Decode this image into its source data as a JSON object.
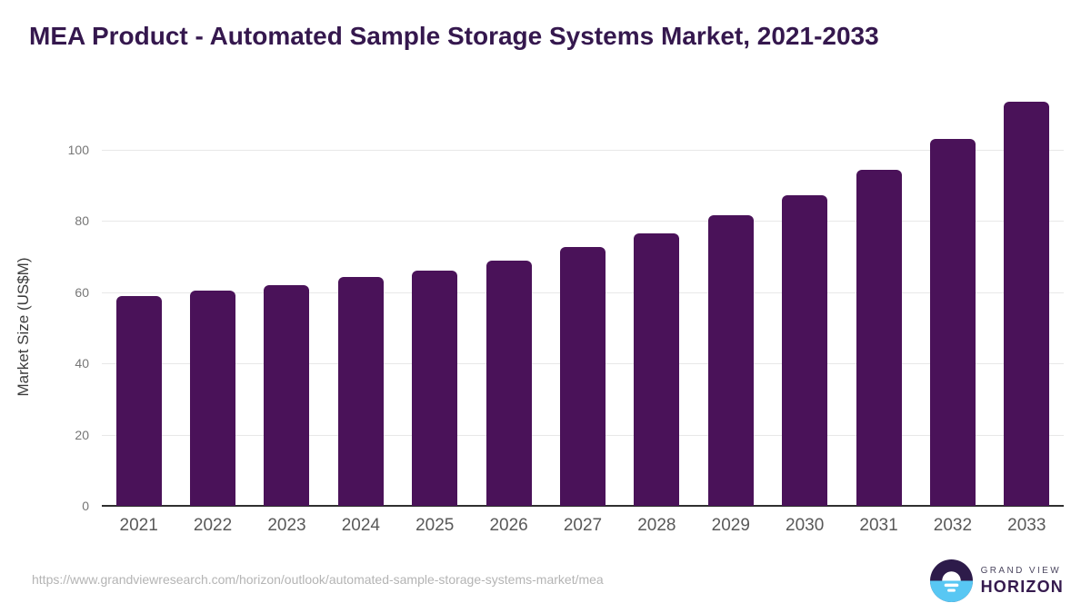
{
  "header": {
    "title": "MEA Product - Automated Sample Storage Systems Market, 2021-2033"
  },
  "chart_data": {
    "type": "bar",
    "title": "MEA Product - Automated Sample Storage Systems Market, 2021-2033",
    "categories": [
      "2021",
      "2022",
      "2023",
      "2024",
      "2025",
      "2026",
      "2027",
      "2028",
      "2029",
      "2030",
      "2031",
      "2032",
      "2033"
    ],
    "values": [
      58.8,
      60.3,
      61.9,
      64.2,
      66.1,
      68.9,
      72.6,
      76.4,
      81.5,
      87.2,
      94.3,
      103.0,
      113.5
    ],
    "xlabel": "",
    "ylabel": "Market Size (US$M)",
    "ylim": [
      0,
      120
    ],
    "yticks": [
      0,
      20,
      40,
      60,
      80,
      100
    ],
    "grid": true,
    "legend_position": "none",
    "bar_color": "#4a1259"
  },
  "footer": {
    "url": "https://www.grandviewresearch.com/horizon/outlook/automated-sample-storage-systems-market/mea",
    "logo": {
      "line1": "GRAND VIEW",
      "line2": "HORIZON"
    }
  },
  "colors": {
    "title": "#35184e",
    "bar": "#4a1259",
    "gridline": "#e8e8e8",
    "axis": "#2f2f2f",
    "logo_dark": "#2d1b4a",
    "logo_blue": "#58c7f3"
  }
}
